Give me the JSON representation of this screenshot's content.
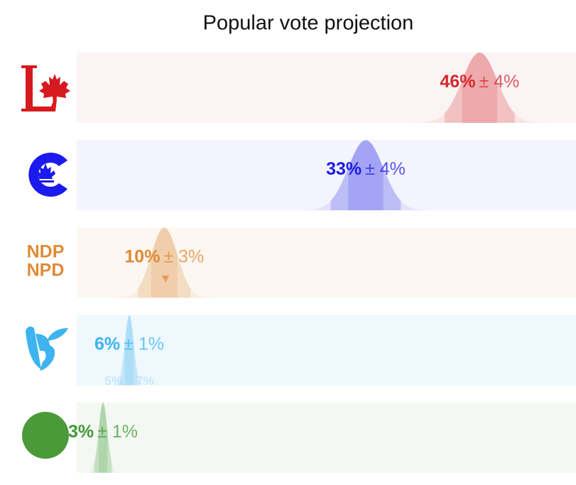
{
  "chart_data": {
    "type": "distribution",
    "title": "Popular vote projection",
    "xlim": [
      0,
      57
    ],
    "series": [
      {
        "color": "#d42a2f",
        "background": "#fcf4f4",
        "values": [
          46
        ],
        "value_labels": [
          "46%"
        ],
        "errors": [
          4
        ],
        "error_labels": [
          "± 4%"
        ]
      },
      {
        "color": "#1c1ce6",
        "background": "#f4f4fe",
        "values": [
          33
        ],
        "value_labels": [
          "33%"
        ],
        "errors": [
          4
        ],
        "error_labels": [
          "± 4%"
        ]
      },
      {
        "color": "#df8a35",
        "background": "#fcf7f1",
        "values": [
          10
        ],
        "value_labels": [
          "10%"
        ],
        "errors": [
          3
        ],
        "error_labels": [
          "± 3%"
        ],
        "logo": [
          "NDP",
          "NPD"
        ]
      },
      {
        "color": "#3db4ef",
        "background": "#eff8fd",
        "values": [
          6
        ],
        "value_labels": [
          "6%"
        ],
        "errors": [
          1
        ],
        "error_labels": [
          "± 1%"
        ],
        "annotations": [
          {
            "value": 5,
            "label": "5%"
          },
          {
            "value": 7,
            "label": "7%"
          }
        ]
      },
      {
        "color": "#3f9a37",
        "background": "#f4f8f2",
        "values": [
          3
        ],
        "value_labels": [
          "3%"
        ],
        "errors": [
          1
        ],
        "error_labels": [
          "± 1%"
        ]
      }
    ]
  }
}
